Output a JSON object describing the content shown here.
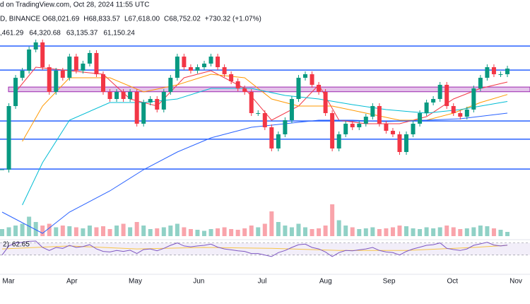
{
  "header": {
    "source": "d on TradingView.com, Oct 28, 2024 11:55 UTC",
    "symbol": "D, BINANCE",
    "ohlc": [
      "O68,021.69",
      "H68,833.57",
      "L67,618.00",
      "C68,752.02",
      "+730.32 (+1.07%)"
    ]
  },
  "chart_data": {
    "type": "candlestick",
    "closes": [
      51490,
      62355,
      67180,
      68390,
      72010,
      73220,
      68990,
      64770,
      68390,
      67180,
      70800,
      68390,
      69600,
      71410,
      67790,
      64770,
      63560,
      64770,
      63560,
      64770,
      59340,
      62960,
      63560,
      61750,
      64770,
      67180,
      70800,
      68990,
      68390,
      68990,
      69600,
      70800,
      68990,
      67790,
      66580,
      65370,
      64770,
      61150,
      61150,
      58730,
      55110,
      57530,
      59940,
      63560,
      67180,
      67790,
      65980,
      64770,
      61150,
      55110,
      57530,
      59340,
      58730,
      59340,
      60540,
      62355,
      59340,
      58130,
      57530,
      54510,
      57530,
      59340,
      61150,
      62960,
      63560,
      65980,
      62355,
      61150,
      60540,
      61750,
      65370,
      67180,
      68990,
      67790,
      67790,
      68752.02
    ],
    "ylim": [
      40630,
      80460
    ],
    "up_color": "#089981",
    "down_color": "#f23645",
    "levels": [
      72600,
      68500,
      59800,
      56700,
      51600
    ],
    "level_color": "#2962ff",
    "range_band": [
      64800,
      65600
    ],
    "range_band_color": "#ce93d8",
    "moving_averages": [
      {
        "color": "#f23645",
        "value_label": ",461.29",
        "x": [
          2,
          5,
          10,
          15,
          19,
          23,
          27,
          31,
          36,
          40,
          44,
          47,
          50,
          54,
          59,
          63,
          67,
          71,
          75
        ],
        "values": [
          64770,
          68990,
          68390,
          67790,
          63560,
          62350,
          67180,
          68390,
          65370,
          59940,
          62350,
          65980,
          59940,
          59340,
          59340,
          60540,
          63560,
          65370,
          66461.29
        ]
      },
      {
        "color": "#ff9800",
        "value_label": "64,320.68",
        "x": [
          3,
          6,
          10,
          16,
          21,
          26,
          31,
          36,
          40,
          44,
          49,
          54,
          59,
          63,
          67,
          71,
          75
        ],
        "values": [
          56320,
          62350,
          67180,
          67180,
          64770,
          65980,
          67790,
          67180,
          63560,
          62350,
          62350,
          61150,
          59940,
          59940,
          61150,
          62960,
          64320.68
        ]
      },
      {
        "color": "#00bcd4",
        "value_label": "63,135.37",
        "x": [
          3,
          6,
          10,
          16,
          21,
          26,
          31,
          37,
          42,
          47,
          52,
          57,
          63,
          68,
          75
        ],
        "values": [
          45460,
          52700,
          59940,
          62960,
          62960,
          63560,
          65370,
          65370,
          64170,
          63560,
          62600,
          61750,
          61150,
          61750,
          63135.37
        ]
      },
      {
        "color": "#2962ff",
        "value_label": "61,150.24",
        "x": [
          0,
          6,
          10,
          16,
          21,
          26,
          31,
          37,
          42,
          47,
          52,
          57,
          63,
          68,
          75
        ],
        "values": [
          44250,
          40630,
          44250,
          47870,
          51490,
          54510,
          56920,
          58730,
          59340,
          59940,
          59940,
          59700,
          59940,
          60180,
          61150.24
        ]
      }
    ],
    "volume": {
      "vlim": [
        0,
        100
      ],
      "values": [
        20,
        25,
        30,
        35,
        55,
        40,
        30,
        35,
        25,
        30,
        28,
        25,
        22,
        30,
        25,
        28,
        20,
        30,
        35,
        25,
        40,
        30,
        20,
        22,
        25,
        30,
        35,
        25,
        20,
        18,
        15,
        20,
        22,
        25,
        20,
        18,
        22,
        30,
        25,
        35,
        70,
        40,
        30,
        25,
        35,
        25,
        20,
        22,
        30,
        90,
        45,
        30,
        25,
        20,
        22,
        25,
        20,
        22,
        25,
        30,
        28,
        22,
        20,
        25,
        22,
        25,
        30,
        25,
        20,
        22,
        25,
        30,
        28,
        22,
        18,
        12
      ]
    },
    "rsi": {
      "label": "2)",
      "color": "#7e57c2",
      "ylim": [
        20,
        90
      ],
      "bands": [
        30,
        70
      ],
      "values": [
        30,
        60,
        70,
        72,
        75,
        76,
        55,
        45,
        55,
        52,
        62,
        55,
        58,
        64,
        50,
        42,
        40,
        45,
        42,
        46,
        35,
        48,
        50,
        44,
        52,
        62,
        70,
        60,
        57,
        60,
        62,
        66,
        56,
        50,
        47,
        44,
        42,
        35,
        35,
        30,
        25,
        38,
        45,
        55,
        64,
        66,
        55,
        50,
        40,
        25,
        38,
        45,
        44,
        47,
        50,
        55,
        45,
        40,
        38,
        30,
        42,
        50,
        56,
        62,
        64,
        70,
        52,
        48,
        45,
        50,
        62,
        67,
        72,
        63,
        60,
        62.65
      ],
      "ma": {
        "color": "#f7c548",
        "x": [
          0,
          10,
          20,
          30,
          40,
          50,
          60,
          70,
          75
        ],
        "values": [
          50,
          60,
          50,
          55,
          52,
          45,
          45,
          55,
          62
        ]
      }
    },
    "months": [
      "Mar",
      "Apr",
      "May",
      "Jun",
      "Jul",
      "Aug",
      "Sep",
      "Oct",
      "Nov"
    ]
  }
}
